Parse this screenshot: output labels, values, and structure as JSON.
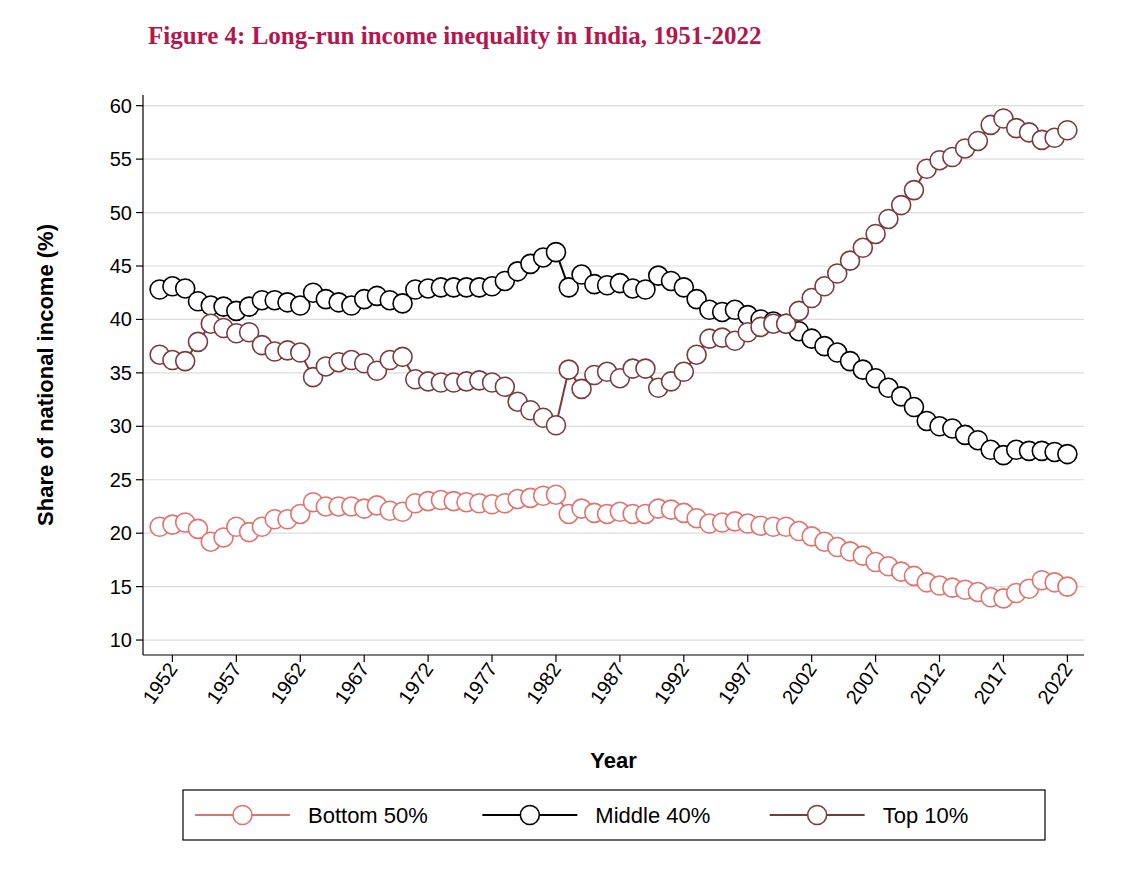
{
  "chart_data": {
    "type": "line",
    "title": "Figure 4: Long-run income inequality in India, 1951-2022",
    "x_label": "Year",
    "y_label": "Share of national income (%)",
    "x": [
      1951,
      1952,
      1953,
      1954,
      1955,
      1956,
      1957,
      1958,
      1959,
      1960,
      1961,
      1962,
      1963,
      1964,
      1965,
      1966,
      1967,
      1968,
      1969,
      1970,
      1971,
      1972,
      1973,
      1974,
      1975,
      1976,
      1977,
      1978,
      1979,
      1980,
      1981,
      1982,
      1983,
      1984,
      1985,
      1986,
      1987,
      1988,
      1989,
      1990,
      1991,
      1992,
      1993,
      1994,
      1995,
      1996,
      1997,
      1998,
      1999,
      2000,
      2001,
      2002,
      2003,
      2004,
      2005,
      2006,
      2007,
      2008,
      2009,
      2010,
      2011,
      2012,
      2013,
      2014,
      2015,
      2016,
      2017,
      2018,
      2019,
      2020,
      2021,
      2022
    ],
    "series": [
      {
        "name": "Bottom 50%",
        "color": "#e0736d",
        "marker": "hollow-circle",
        "line_style": "solid",
        "values": [
          20.6,
          20.8,
          21.0,
          20.4,
          19.2,
          19.6,
          20.6,
          20.1,
          20.6,
          21.3,
          21.3,
          21.8,
          22.9,
          22.5,
          22.5,
          22.5,
          22.3,
          22.6,
          22.1,
          22.0,
          22.8,
          23.0,
          23.1,
          23.0,
          22.9,
          22.8,
          22.7,
          22.8,
          23.2,
          23.3,
          23.5,
          23.6,
          21.8,
          22.3,
          21.9,
          21.8,
          22.0,
          21.8,
          21.8,
          22.3,
          22.2,
          21.9,
          21.4,
          20.9,
          21.0,
          21.1,
          20.9,
          20.7,
          20.6,
          20.6,
          20.2,
          19.7,
          19.2,
          18.7,
          18.3,
          17.9,
          17.3,
          16.9,
          16.4,
          16.0,
          15.4,
          15.1,
          14.9,
          14.7,
          14.5,
          14.0,
          13.9,
          14.4,
          14.8,
          15.6,
          15.4,
          15.0
        ]
      },
      {
        "name": "Middle 40%",
        "color": "#000000",
        "marker": "hollow-circle",
        "line_style": "solid",
        "values": [
          42.8,
          43.1,
          42.9,
          41.7,
          41.3,
          41.2,
          40.8,
          41.2,
          41.8,
          41.8,
          41.6,
          41.3,
          42.5,
          41.9,
          41.6,
          41.3,
          41.9,
          42.2,
          41.8,
          41.5,
          42.8,
          42.9,
          43.0,
          43.0,
          43.0,
          43.0,
          43.1,
          43.6,
          44.5,
          45.2,
          45.8,
          46.3,
          43.0,
          44.2,
          43.3,
          43.2,
          43.4,
          42.9,
          42.8,
          44.1,
          43.6,
          43.0,
          41.9,
          40.9,
          40.7,
          40.9,
          40.4,
          40.0,
          39.8,
          39.6,
          38.9,
          38.2,
          37.5,
          36.9,
          36.1,
          35.3,
          34.5,
          33.6,
          32.8,
          31.8,
          30.5,
          30.0,
          29.8,
          29.2,
          28.7,
          27.8,
          27.3,
          27.8,
          27.7,
          27.7,
          27.6,
          27.4
        ]
      },
      {
        "name": "Top 10%",
        "color": "#7a3b40",
        "marker": "hollow-circle",
        "line_style": "solid",
        "values": [
          36.7,
          36.2,
          36.1,
          37.9,
          39.6,
          39.2,
          38.7,
          38.8,
          37.6,
          37.0,
          37.1,
          36.9,
          34.6,
          35.6,
          36.0,
          36.2,
          35.9,
          35.2,
          36.2,
          36.5,
          34.4,
          34.2,
          34.1,
          34.1,
          34.2,
          34.3,
          34.1,
          33.7,
          32.3,
          31.5,
          30.8,
          30.1,
          35.3,
          33.5,
          34.8,
          35.1,
          34.5,
          35.4,
          35.4,
          33.6,
          34.2,
          35.1,
          36.7,
          38.2,
          38.3,
          38.0,
          38.8,
          39.3,
          39.6,
          39.6,
          40.8,
          42.0,
          43.1,
          44.3,
          45.5,
          46.7,
          48.0,
          49.4,
          50.7,
          52.1,
          54.1,
          54.9,
          55.2,
          56.0,
          56.7,
          58.2,
          58.8,
          57.9,
          57.5,
          56.8,
          57.0,
          57.7
        ]
      }
    ],
    "xlim": [
      1949.7,
      2023.3
    ],
    "xticks": [
      1952,
      1957,
      1962,
      1967,
      1972,
      1977,
      1982,
      1987,
      1992,
      1997,
      2002,
      2007,
      2012,
      2017,
      2022
    ],
    "ylim": [
      8.6,
      61
    ],
    "yticks": [
      10,
      15,
      20,
      25,
      30,
      35,
      40,
      45,
      50,
      55,
      60
    ],
    "grid": true,
    "legend": "bottom"
  }
}
